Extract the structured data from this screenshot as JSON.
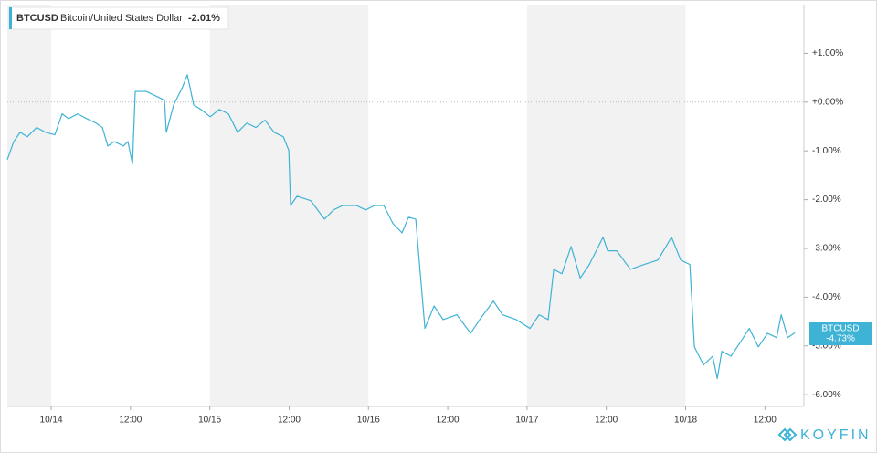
{
  "chart_data": {
    "type": "line",
    "header": {
      "ticker": "BTCUSD",
      "name": "Bitcoin/United States Dollar",
      "change_label": "-2.01%"
    },
    "end_label": "-4.73%",
    "logo": "KOYFIN",
    "x": [
      -6.64,
      -5.67,
      -4.7,
      -3.59,
      -2.21,
      -0.83,
      0.55,
      1.66,
      2.63,
      4.01,
      5.39,
      6.77,
      7.74,
      8.57,
      9.54,
      10.92,
      11.61,
      12.3,
      12.72,
      14.38,
      15.76,
      17.14,
      17.42,
      18.53,
      19.91,
      20.6,
      21.57,
      22.67,
      24.06,
      25.44,
      26.82,
      28.2,
      29.59,
      30.97,
      32.35,
      33.73,
      35.12,
      35.95,
      36.22,
      37.19,
      39.27,
      41.34,
      42.72,
      44.1,
      46.18,
      47.56,
      48.94,
      50.33,
      51.71,
      53.09,
      54.06,
      55.16,
      55.85,
      56.55,
      57.93,
      59.31,
      61.39,
      63.46,
      64.84,
      66.92,
      68.3,
      70.37,
      72.45,
      73.83,
      75.21,
      76.04,
      77.28,
      78.67,
      80.05,
      81.43,
      83.5,
      84.2,
      85.58,
      87.65,
      89.73,
      91.8,
      93.87,
      95.26,
      96.64,
      97.33,
      98.71,
      100.1,
      100.79,
      101.48,
      102.86,
      104.25,
      105.63,
      107.01,
      108.39,
      109.77,
      110.47,
      111.44,
      112.54
    ],
    "series": [
      {
        "name": "BTCUSD",
        "color": "#3eb3d6",
        "values": [
          -1.18,
          -0.81,
          -0.62,
          -0.71,
          -0.52,
          -0.62,
          -0.67,
          -0.24,
          -0.34,
          -0.24,
          -0.34,
          -0.43,
          -0.52,
          -0.9,
          -0.81,
          -0.9,
          -0.81,
          -1.27,
          0.22,
          0.22,
          0.13,
          0.04,
          -0.62,
          -0.06,
          0.32,
          0.56,
          -0.06,
          -0.15,
          -0.3,
          -0.15,
          -0.24,
          -0.62,
          -0.43,
          -0.52,
          -0.37,
          -0.62,
          -0.71,
          -0.99,
          -2.12,
          -1.93,
          -2.02,
          -2.4,
          -2.21,
          -2.12,
          -2.12,
          -2.21,
          -2.12,
          -2.12,
          -2.49,
          -2.68,
          -2.36,
          -2.4,
          -3.52,
          -4.64,
          -4.18,
          -4.46,
          -4.36,
          -4.74,
          -4.46,
          -4.08,
          -4.36,
          -4.46,
          -4.64,
          -4.36,
          -4.46,
          -3.43,
          -3.52,
          -2.96,
          -3.61,
          -3.33,
          -2.77,
          -3.05,
          -3.05,
          -3.43,
          -3.33,
          -3.24,
          -2.77,
          -3.24,
          -3.33,
          -5.02,
          -5.39,
          -5.21,
          -5.67,
          -5.11,
          -5.21,
          -4.93,
          -4.64,
          -5.02,
          -4.74,
          -4.83,
          -4.36,
          -4.83,
          -4.73
        ]
      }
    ],
    "xlim": [
      -6.64,
      113.9
    ],
    "ylim": [
      -6.24,
      2.0
    ],
    "xticks": [
      {
        "value": 0,
        "label": "10/14"
      },
      {
        "value": 12,
        "label": "12:00"
      },
      {
        "value": 24,
        "label": "10/15"
      },
      {
        "value": 36,
        "label": "12:00"
      },
      {
        "value": 48,
        "label": "10/16"
      },
      {
        "value": 60,
        "label": "12:00"
      },
      {
        "value": 72,
        "label": "10/17"
      },
      {
        "value": 84,
        "label": "12:00"
      },
      {
        "value": 96,
        "label": "10/18"
      },
      {
        "value": 108,
        "label": "12:00"
      }
    ],
    "yticks": [
      {
        "value": 1,
        "label": "+1.00%"
      },
      {
        "value": 0,
        "label": "+0.00%"
      },
      {
        "value": -1,
        "label": "-1.00%"
      },
      {
        "value": -2,
        "label": "-2.00%"
      },
      {
        "value": -3,
        "label": "-3.00%"
      },
      {
        "value": -4,
        "label": "-4.00%"
      },
      {
        "value": -5,
        "label": "-5.00%"
      },
      {
        "value": -6,
        "label": "-6.00%"
      }
    ],
    "shading": [
      [
        -6.64,
        0
      ],
      [
        24,
        48
      ],
      [
        72,
        96
      ]
    ],
    "reference_line": 0,
    "grid": false
  }
}
